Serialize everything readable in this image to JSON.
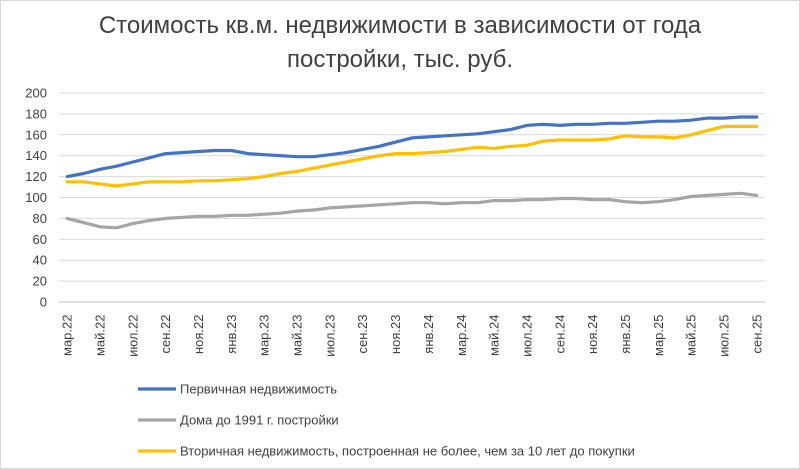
{
  "chart_data": {
    "type": "line",
    "title_line1": "Стоимость кв.м. недвижимости в зависимости от года",
    "title_line2": "постройки, тыс. руб.",
    "ylim": [
      0,
      200
    ],
    "y_ticks": [
      0,
      20,
      40,
      60,
      80,
      100,
      120,
      140,
      160,
      180,
      200
    ],
    "grid": true,
    "legend_position": "bottom",
    "x": [
      "мар.22",
      "апр.22",
      "май.22",
      "июн.22",
      "июл.22",
      "авг.22",
      "сен.22",
      "окт.22",
      "ноя.22",
      "дек.22",
      "янв.23",
      "фев.23",
      "мар.23",
      "апр.23",
      "май.23",
      "июн.23",
      "июл.23",
      "авг.23",
      "сен.23",
      "окт.23",
      "ноя.23",
      "дек.23",
      "янв.24",
      "фев.24",
      "мар.24",
      "апр.24",
      "май.24",
      "июн.24",
      "июл.24",
      "авг.24",
      "сен.24",
      "окт.24",
      "ноя.24",
      "дек.24",
      "янв.25",
      "фев.25",
      "мар.25",
      "апр.25",
      "май.25",
      "июн.25",
      "июл.25",
      "авг.25",
      "сен.25"
    ],
    "x_tick_labels": [
      "мар.22",
      "май.22",
      "июл.22",
      "сен.22",
      "ноя.22",
      "янв.23",
      "мар.23",
      "май.23",
      "июл.23",
      "сен.23",
      "ноя.23",
      "янв.24",
      "мар.24",
      "май.24",
      "июл.24",
      "сен.24",
      "ноя.24",
      "янв.25",
      "мар.25",
      "май.25",
      "июл.25",
      "сен.25"
    ],
    "series": [
      {
        "name": "Первичная недвижимость",
        "color": "#4472c4",
        "values": [
          120,
          123,
          127,
          130,
          134,
          138,
          142,
          143,
          144,
          145,
          145,
          142,
          141,
          140,
          139,
          139,
          141,
          143,
          146,
          149,
          153,
          157,
          158,
          159,
          160,
          161,
          163,
          165,
          169,
          170,
          169,
          170,
          170,
          171,
          171,
          172,
          173,
          173,
          174,
          176,
          176,
          177,
          177
        ]
      },
      {
        "name": "Дома до 1991 г. постройки",
        "color": "#a5a5a5",
        "values": [
          80,
          76,
          72,
          71,
          75,
          78,
          80,
          81,
          82,
          82,
          83,
          83,
          84,
          85,
          87,
          88,
          90,
          91,
          92,
          93,
          94,
          95,
          95,
          94,
          95,
          95,
          97,
          97,
          98,
          98,
          99,
          99,
          98,
          98,
          96,
          95,
          96,
          98,
          101,
          102,
          103,
          104,
          102
        ]
      },
      {
        "name": "Вторичная недвижимость, построенная не более, чем за 10 лет до покупки",
        "color": "#ffc000",
        "values": [
          115,
          115,
          113,
          111,
          113,
          115,
          115,
          115,
          116,
          116,
          117,
          118,
          120,
          123,
          125,
          128,
          131,
          134,
          137,
          140,
          142,
          142,
          143,
          144,
          146,
          148,
          147,
          149,
          150,
          154,
          155,
          155,
          155,
          156,
          159,
          158,
          158,
          157,
          160,
          164,
          168,
          168,
          168
        ]
      }
    ]
  }
}
